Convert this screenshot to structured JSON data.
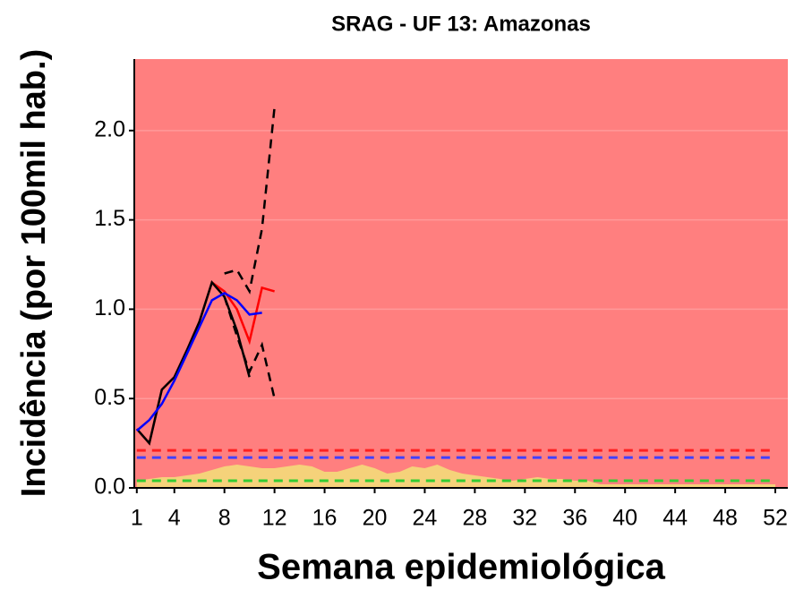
{
  "chart_data": {
    "type": "line",
    "title": "SRAG - UF 13: Amazonas",
    "x_label": "Semana epidemiológica",
    "y_label": "Incidência (por 100mil hab.)",
    "background": "#ff7f7f",
    "grid": true,
    "xlim": [
      0.8,
      53
    ],
    "ylim": [
      0,
      2.4
    ],
    "xticks": [
      1,
      4,
      8,
      12,
      16,
      20,
      24,
      28,
      32,
      36,
      40,
      44,
      48,
      52
    ],
    "yticks": [
      {
        "value": 0,
        "label": "0.0"
      },
      {
        "value": 0.5,
        "label": "0.5"
      },
      {
        "value": 1,
        "label": "1.0"
      },
      {
        "value": 1.5,
        "label": "1.5"
      },
      {
        "value": 2,
        "label": "2.0"
      }
    ],
    "area": {
      "color": "#f5d27a",
      "x": [
        1,
        2,
        3,
        4,
        5,
        6,
        7,
        8,
        9,
        10,
        11,
        12,
        13,
        14,
        15,
        16,
        17,
        18,
        19,
        20,
        21,
        22,
        23,
        24,
        25,
        26,
        27,
        28,
        29,
        30,
        31,
        32,
        33,
        34,
        35,
        36,
        37,
        38,
        39,
        40,
        41,
        42,
        43,
        44,
        45,
        46,
        47,
        48,
        49,
        50,
        51,
        52
      ],
      "values": [
        0.04,
        0.05,
        0.06,
        0.06,
        0.07,
        0.08,
        0.1,
        0.12,
        0.13,
        0.12,
        0.11,
        0.11,
        0.12,
        0.13,
        0.12,
        0.09,
        0.09,
        0.11,
        0.13,
        0.11,
        0.08,
        0.09,
        0.12,
        0.11,
        0.13,
        0.1,
        0.08,
        0.07,
        0.06,
        0.05,
        0.04,
        0.05,
        0.06,
        0.05,
        0.05,
        0.04,
        0.04,
        0.02,
        0.02,
        0.02,
        0.02,
        0.02,
        0.02,
        0.02,
        0.02,
        0.02,
        0.02,
        0.02,
        0.02,
        0.02,
        0.02,
        0.02
      ]
    },
    "hlines": [
      {
        "value": 0.21,
        "color": "#ff2020"
      },
      {
        "value": 0.17,
        "color": "#4040ff"
      },
      {
        "value": 0.04,
        "color": "#33cc33"
      }
    ],
    "series": [
      {
        "color": "#000000",
        "dash": true,
        "x": [
          8,
          9,
          10,
          11,
          12
        ],
        "values": [
          1.2,
          1.22,
          1.1,
          1.45,
          2.13
        ]
      },
      {
        "color": "#000000",
        "dash": true,
        "x": [
          8,
          9,
          10,
          11,
          12
        ],
        "values": [
          1.07,
          0.85,
          0.65,
          0.8,
          0.5
        ]
      },
      {
        "color": "#ff0000",
        "dash": false,
        "x": [
          1,
          2,
          3,
          4,
          5,
          6,
          7,
          8,
          9,
          10,
          11,
          12
        ],
        "values": [
          0.33,
          0.25,
          0.55,
          0.62,
          0.77,
          0.93,
          1.15,
          1.1,
          1.0,
          0.82,
          1.12,
          1.1
        ]
      },
      {
        "color": "#000000",
        "dash": false,
        "x": [
          1,
          2,
          3,
          4,
          5,
          6,
          7,
          8,
          9,
          10
        ],
        "values": [
          0.33,
          0.25,
          0.55,
          0.62,
          0.77,
          0.93,
          1.15,
          1.07,
          0.88,
          0.62
        ]
      },
      {
        "color": "#0000ff",
        "dash": false,
        "x": [
          1,
          2,
          3,
          4,
          5,
          6,
          7,
          8,
          9,
          10,
          11
        ],
        "values": [
          0.32,
          0.38,
          0.47,
          0.6,
          0.75,
          0.9,
          1.05,
          1.09,
          1.05,
          0.97,
          0.98
        ]
      }
    ]
  }
}
